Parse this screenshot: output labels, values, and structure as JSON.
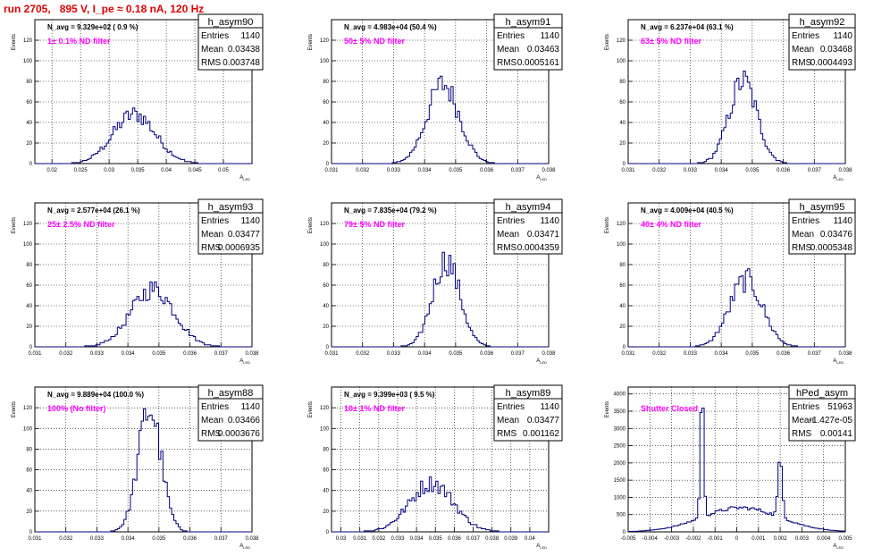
{
  "run_title": "run 2705,   895 V, I_pe ≈ 0.18 nA, 120 Hz",
  "colors": {
    "title": "#e00000",
    "histogram": "#000080",
    "annotation": "#ff00ff",
    "grid": "#000000"
  },
  "chart_data": [
    {
      "type": "histogram",
      "name": "h_asym90",
      "navg": "N_avg = 9.329e+02 ( 0.9 %)",
      "filter_label": "1± 0.1% ND filter",
      "stats": {
        "Entries": "1140",
        "Mean": "0.03438",
        "RMS": "0.003748"
      },
      "xlabel": "A_LED",
      "ylabel": "Events",
      "xlim": [
        0.017,
        0.055
      ],
      "ylim": [
        0,
        140
      ],
      "grid": true,
      "xticks": [
        "0.02",
        "0.025",
        "0.03",
        "0.035",
        "0.04",
        "0.045",
        "0.05"
      ],
      "yticks": [
        "0",
        "20",
        "40",
        "60",
        "80",
        "100",
        "120"
      ],
      "peak_center": 0.0344,
      "peak_sigma": 0.0037,
      "peak_max": 48
    },
    {
      "type": "histogram",
      "name": "h_asym91",
      "navg": "N_avg = 4.983e+04 (50.4 %)",
      "filter_label": "50± 5% ND filter",
      "stats": {
        "Entries": "1140",
        "Mean": "0.03463",
        "RMS": "0.0005161"
      },
      "xlabel": "A_LED",
      "ylabel": "Events",
      "xlim": [
        0.031,
        0.038
      ],
      "ylim": [
        0,
        140
      ],
      "grid": true,
      "xticks": [
        "0.031",
        "0.032",
        "0.033",
        "0.034",
        "0.035",
        "0.036",
        "0.037",
        "0.038"
      ],
      "yticks": [
        "0",
        "20",
        "40",
        "60",
        "80",
        "100",
        "120"
      ],
      "peak_center": 0.0346,
      "peak_sigma": 0.00052,
      "peak_max": 77
    },
    {
      "type": "histogram",
      "name": "h_asym92",
      "navg": "N_avg = 6.237e+04 (63.1 %)",
      "filter_label": "63± 5% ND filter",
      "stats": {
        "Entries": "1140",
        "Mean": "0.03468",
        "RMS": "0.0004493"
      },
      "xlabel": "A_LED",
      "ylabel": "Events",
      "xlim": [
        0.031,
        0.038
      ],
      "ylim": [
        0,
        140
      ],
      "grid": true,
      "xticks": [
        "0.031",
        "0.032",
        "0.033",
        "0.034",
        "0.035",
        "0.036",
        "0.037",
        "0.038"
      ],
      "yticks": [
        "0",
        "20",
        "40",
        "60",
        "80",
        "100",
        "120"
      ],
      "peak_center": 0.0347,
      "peak_sigma": 0.00045,
      "peak_max": 80
    },
    {
      "type": "histogram",
      "name": "h_asym93",
      "navg": "N_avg = 2.577e+04 (26.1 %)",
      "filter_label": "25± 2.5% ND filter",
      "stats": {
        "Entries": "1140",
        "Mean": "0.03477",
        "RMS": "0.0006935"
      },
      "xlabel": "A_LED",
      "ylabel": "Events",
      "xlim": [
        0.031,
        0.038
      ],
      "ylim": [
        0,
        140
      ],
      "grid": true,
      "xticks": [
        "0.031",
        "0.032",
        "0.033",
        "0.034",
        "0.035",
        "0.036",
        "0.037",
        "0.038"
      ],
      "yticks": [
        "0",
        "20",
        "40",
        "60",
        "80",
        "100",
        "120"
      ],
      "peak_center": 0.0348,
      "peak_sigma": 0.0007,
      "peak_max": 56
    },
    {
      "type": "histogram",
      "name": "h_asym94",
      "navg": "N_avg = 7.835e+04 (79.2 %)",
      "filter_label": "79± 5% ND filter",
      "stats": {
        "Entries": "1140",
        "Mean": "0.03471",
        "RMS": "0.0004359"
      },
      "xlabel": "A_LED",
      "ylabel": "Events",
      "xlim": [
        0.031,
        0.038
      ],
      "ylim": [
        0,
        140
      ],
      "grid": true,
      "xticks": [
        "0.031",
        "0.032",
        "0.033",
        "0.034",
        "0.035",
        "0.036",
        "0.037",
        "0.038"
      ],
      "yticks": [
        "0",
        "20",
        "40",
        "60",
        "80",
        "100",
        "120"
      ],
      "peak_center": 0.0347,
      "peak_sigma": 0.00044,
      "peak_max": 84
    },
    {
      "type": "histogram",
      "name": "h_asym95",
      "navg": "N_avg = 4.009e+04 (40.5 %)",
      "filter_label": "40± 4% ND filter",
      "stats": {
        "Entries": "1140",
        "Mean": "0.03476",
        "RMS": "0.0005348"
      },
      "xlabel": "A_LED",
      "ylabel": "Events",
      "xlim": [
        0.031,
        0.038
      ],
      "ylim": [
        0,
        140
      ],
      "grid": true,
      "xticks": [
        "0.031",
        "0.032",
        "0.033",
        "0.034",
        "0.035",
        "0.036",
        "0.037",
        "0.038"
      ],
      "yticks": [
        "0",
        "20",
        "40",
        "60",
        "80",
        "100",
        "120"
      ],
      "peak_center": 0.0348,
      "peak_sigma": 0.00053,
      "peak_max": 65
    },
    {
      "type": "histogram",
      "name": "h_asym88",
      "navg": "N_avg = 9.889e+04 (100.0 %)",
      "filter_label": "100% (No filter)",
      "stats": {
        "Entries": "1140",
        "Mean": "0.03466",
        "RMS": "0.0003676"
      },
      "xlabel": "A_LED",
      "ylabel": "Events",
      "xlim": [
        0.031,
        0.038
      ],
      "ylim": [
        0,
        140
      ],
      "grid": true,
      "xticks": [
        "0.031",
        "0.032",
        "0.033",
        "0.034",
        "0.035",
        "0.036",
        "0.037",
        "0.038"
      ],
      "yticks": [
        "0",
        "20",
        "40",
        "60",
        "80",
        "100",
        "120"
      ],
      "peak_center": 0.0347,
      "peak_sigma": 0.00037,
      "peak_max": 119
    },
    {
      "type": "histogram",
      "name": "h_asym89",
      "navg": "N_avg = 9.399e+03 ( 9.5 %)",
      "filter_label": "10± 1% ND filter",
      "stats": {
        "Entries": "1140",
        "Mean": "0.03477",
        "RMS": "0.001162"
      },
      "xlabel": "A_LED",
      "ylabel": "Events",
      "xlim": [
        0.0295,
        0.041
      ],
      "ylim": [
        0,
        140
      ],
      "grid": true,
      "xticks": [
        "0.03",
        "0.031",
        "0.032",
        "0.033",
        "0.034",
        "0.035",
        "0.036",
        "0.037",
        "0.038",
        "0.039",
        "0.04"
      ],
      "yticks": [
        "0",
        "20",
        "40",
        "60",
        "80",
        "100",
        "120"
      ],
      "peak_center": 0.0348,
      "peak_sigma": 0.00116,
      "peak_max": 47
    },
    {
      "type": "histogram",
      "name": "hPed_asym",
      "navg": "",
      "filter_label": "Shutter Closed",
      "stats": {
        "Entries": "51963",
        "Mean": "-1.427e-05",
        "RMS": "0.00141"
      },
      "xlabel": "A_LED",
      "ylabel": "Events",
      "xlim": [
        -0.005,
        0.005
      ],
      "ylim": [
        0,
        4200
      ],
      "grid": true,
      "xticks": [
        "-0.005",
        "-0.004",
        "-0.003",
        "-0.002",
        "-0.001",
        "0",
        "0.001",
        "0.002",
        "0.003",
        "0.004",
        "0.005"
      ],
      "yticks": [
        "0",
        "500",
        "1000",
        "1500",
        "2000",
        "2500",
        "3000",
        "3500",
        "4000"
      ],
      "peaks": [
        {
          "center": -0.0016,
          "sigma": 8e-05,
          "height": 3600
        },
        {
          "center": 0.002,
          "sigma": 0.0001,
          "height": 1650
        },
        {
          "center": 0.0002,
          "sigma": 0.0018,
          "height": 700
        }
      ]
    }
  ]
}
